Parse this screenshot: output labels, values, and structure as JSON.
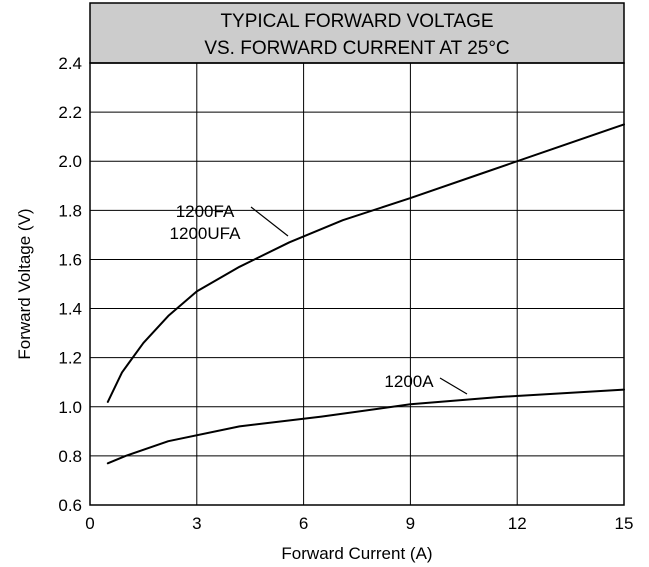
{
  "chart_data": {
    "type": "line",
    "title_lines": [
      "TYPICAL FORWARD VOLTAGE",
      "VS. FORWARD CURRENT AT 25°C"
    ],
    "xlabel": "Forward Current (A)",
    "ylabel": "Forward Voltage (V)",
    "xlim": [
      0,
      15
    ],
    "ylim": [
      0.6,
      2.4
    ],
    "xticks": [
      0,
      3,
      6,
      9,
      12,
      15
    ],
    "yticks": [
      0.6,
      0.8,
      1.0,
      1.2,
      1.4,
      1.6,
      1.8,
      2.0,
      2.2,
      2.4
    ],
    "grid": true,
    "colors": {
      "title_band": "#cccccc",
      "line": "#000000",
      "grid": "#000000"
    },
    "series": [
      {
        "name": "1200FA / 1200UFA",
        "label_lines": [
          "1200FA",
          "1200UFA"
        ],
        "x": [
          0.5,
          0.9,
          1.5,
          2.2,
          3.0,
          4.2,
          5.6,
          7.1,
          9.0,
          11.0,
          13.0,
          15.0
        ],
        "y": [
          1.02,
          1.14,
          1.26,
          1.37,
          1.47,
          1.57,
          1.67,
          1.76,
          1.85,
          1.95,
          2.05,
          2.15
        ]
      },
      {
        "name": "1200A",
        "label_lines": [
          "1200A"
        ],
        "x": [
          0.5,
          1.0,
          2.2,
          4.2,
          6.5,
          9.0,
          11.5,
          15.0
        ],
        "y": [
          0.77,
          0.8,
          0.86,
          0.92,
          0.96,
          1.01,
          1.04,
          1.07
        ]
      }
    ]
  }
}
